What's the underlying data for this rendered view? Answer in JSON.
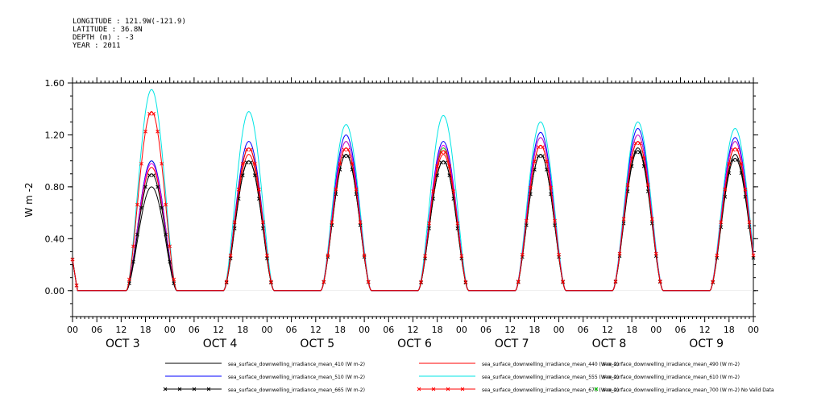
{
  "header": {
    "lines": [
      "LONGITUDE : 121.9W(-121.9)",
      "LATITUDE : 36.8N",
      "DEPTH (m) : -3",
      "YEAR : 2011"
    ]
  },
  "chart_data": {
    "type": "line",
    "title": "",
    "xlabel": "",
    "ylabel": "W m-2",
    "ylim": [
      -0.2,
      1.6
    ],
    "yticks": [
      "0.00",
      "0.40",
      "0.80",
      "1.20",
      "1.60"
    ],
    "ytick_values": [
      0.0,
      0.4,
      0.8,
      1.2,
      1.6
    ],
    "x_hour_ticks": [
      "00",
      "06",
      "12",
      "18",
      "00",
      "06",
      "12",
      "18",
      "00",
      "06",
      "12",
      "18",
      "00",
      "06",
      "12",
      "18",
      "00",
      "06",
      "12",
      "18",
      "00",
      "06",
      "12",
      "18",
      "00",
      "06",
      "12",
      "18",
      "00"
    ],
    "x_day_labels": [
      {
        "label": "OCT   3",
        "hour": 12
      },
      {
        "label": "OCT   4",
        "hour": 36
      },
      {
        "label": "OCT   5",
        "hour": 60
      },
      {
        "label": "OCT   6",
        "hour": 84
      },
      {
        "label": "OCT   7",
        "hour": 108
      },
      {
        "label": "OCT   8",
        "hour": 132
      },
      {
        "label": "OCT   9",
        "hour": 156
      }
    ],
    "x_range_hours": [
      0,
      168
    ],
    "grid": false,
    "legend_position": "bottom",
    "daily_peaks": {
      "hour_of_day": [
        18,
        18,
        18,
        18,
        18,
        18,
        18
      ],
      "series_peak_values": {
        "410": [
          0.8,
          1.0,
          1.05,
          1.0,
          1.05,
          1.1,
          1.05
        ],
        "440": [
          0.95,
          1.05,
          1.1,
          1.05,
          1.12,
          1.15,
          1.1
        ],
        "490": [
          1.0,
          1.1,
          1.15,
          1.1,
          1.18,
          1.2,
          1.15
        ],
        "510": [
          1.0,
          1.15,
          1.2,
          1.15,
          1.22,
          1.25,
          1.18
        ],
        "555": [
          1.55,
          1.38,
          1.28,
          1.35,
          1.3,
          1.3,
          1.25
        ],
        "610": [
          0.98,
          1.1,
          1.15,
          1.12,
          1.18,
          1.2,
          1.15
        ],
        "665": [
          0.9,
          1.0,
          1.05,
          1.0,
          1.05,
          1.08,
          1.02
        ],
        "670": [
          1.38,
          1.1,
          1.1,
          1.08,
          1.12,
          1.15,
          1.1
        ]
      }
    },
    "series": [
      {
        "name": "sea_surface_downwelling_irradiance_mean_410 (W m-2)",
        "color": "#000000",
        "marker": "none"
      },
      {
        "name": "sea_surface_downwelling_irradiance_mean_440 (W m-2)",
        "color": "#ff0000",
        "marker": "none"
      },
      {
        "name": "sea_surface_downwelling_irradiance_mean_490 (W m-2)",
        "color": "#00cc00",
        "marker": "none"
      },
      {
        "name": "sea_surface_downwelling_irradiance_mean_510 (W m-2)",
        "color": "#0000ff",
        "marker": "none"
      },
      {
        "name": "sea_surface_downwelling_irradiance_mean_555 (W m-2)",
        "color": "#00e5e5",
        "marker": "none"
      },
      {
        "name": "sea_surface_downwelling_irradiance_mean_610 (W m-2)",
        "color": "#e500e5",
        "marker": "none"
      },
      {
        "name": "sea_surface_downwelling_irradiance_mean_665 (W m-2)",
        "color": "#000000",
        "marker": "x"
      },
      {
        "name": "sea_surface_downwelling_irradiance_mean_670 (W m-2)",
        "color": "#ff0000",
        "marker": "x"
      },
      {
        "name": "sea_surface_downwelling_irradiance_mean_700 (W m-2) No Valid Data",
        "color": "#00cc00",
        "marker": "x"
      }
    ]
  }
}
